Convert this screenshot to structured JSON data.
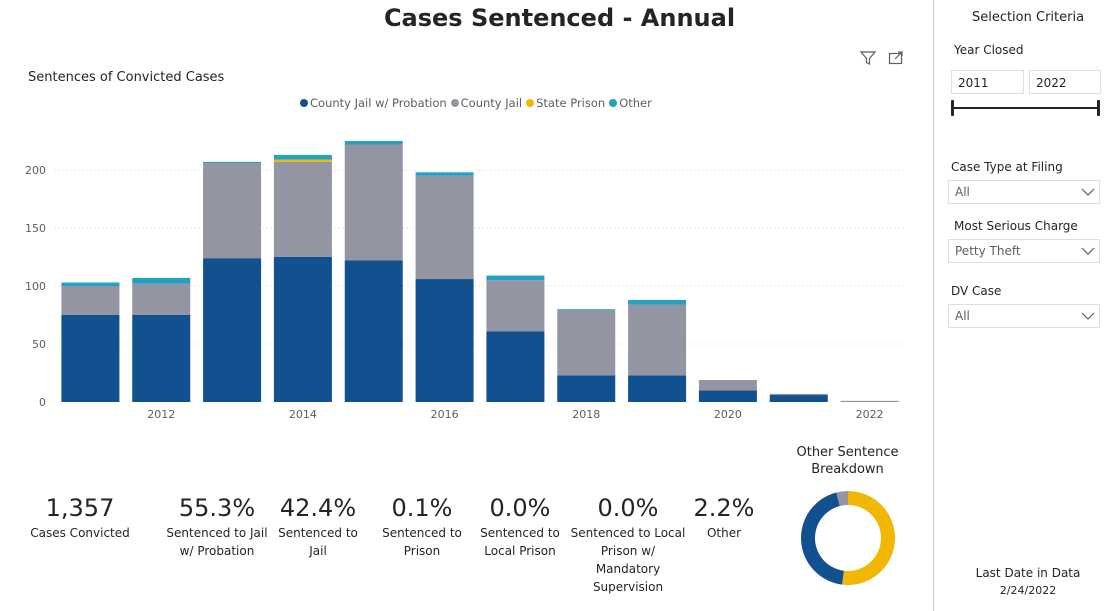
{
  "title": "Cases Sentenced - Annual",
  "toolbar": {
    "filter_icon": "filter-icon",
    "focus_icon": "focus-mode-icon"
  },
  "chart_data": {
    "type": "bar",
    "stacked": true,
    "title": "Sentences of Convicted Cases",
    "x": [
      2011,
      2012,
      2013,
      2014,
      2015,
      2016,
      2017,
      2018,
      2019,
      2020,
      2021,
      2022
    ],
    "x_tick_labels": [
      "2012",
      "2014",
      "2016",
      "2018",
      "2020",
      "2022"
    ],
    "y_ticks": [
      "0",
      "50",
      "100",
      "150",
      "200"
    ],
    "ylim": [
      0,
      230
    ],
    "grid": true,
    "legend_position": "top",
    "series": [
      {
        "name": "County Jail w/ Probation",
        "color": "#12518f",
        "values": [
          75,
          75,
          124,
          125,
          122,
          106,
          61,
          23,
          23,
          10,
          6,
          0
        ]
      },
      {
        "name": "County Jail",
        "color": "#9395a2",
        "values": [
          25,
          27,
          82,
          82,
          100,
          89,
          44,
          56,
          61,
          9,
          1,
          1
        ]
      },
      {
        "name": "State Prison",
        "color": "#f2b705",
        "values": [
          0,
          0,
          0,
          2,
          0,
          0,
          0,
          0,
          0,
          0,
          0,
          0
        ]
      },
      {
        "name": "Other",
        "color": "#23a1c1",
        "values": [
          3,
          5,
          1,
          4,
          3,
          3,
          4,
          1,
          4,
          0,
          0,
          0
        ]
      }
    ]
  },
  "kpis": [
    {
      "value": "1,357",
      "label": "Cases Convicted"
    },
    {
      "value": "55.3%",
      "label": "Sentenced to Jail w/ Probation"
    },
    {
      "value": "42.4%",
      "label": "Sentenced to Jail"
    },
    {
      "value": "0.1%",
      "label": "Sentenced to Prison"
    },
    {
      "value": "0.0%",
      "label": "Sentenced to Local Prison"
    },
    {
      "value": "0.0%",
      "label": "Sentenced to Local Prison w/ Mandatory Supervision"
    },
    {
      "value": "2.2%",
      "label": "Other"
    }
  ],
  "donut": {
    "title": "Other Sentence Breakdown",
    "slices": [
      {
        "value": 52,
        "color": "#f2b705"
      },
      {
        "value": 44,
        "color": "#12518f"
      },
      {
        "value": 4,
        "color": "#9395a2"
      }
    ]
  },
  "panel": {
    "title": "Selection Criteria",
    "year_closed_label": "Year Closed",
    "year_from": "2011",
    "year_to": "2022",
    "case_type_label": "Case Type at Filing",
    "case_type_value": "All",
    "charge_label": "Most Serious Charge",
    "charge_value": "Petty Theft",
    "dv_label": "DV Case",
    "dv_value": "All",
    "last_date_label": "Last Date in Data",
    "last_date_value": "2/24/2022"
  }
}
